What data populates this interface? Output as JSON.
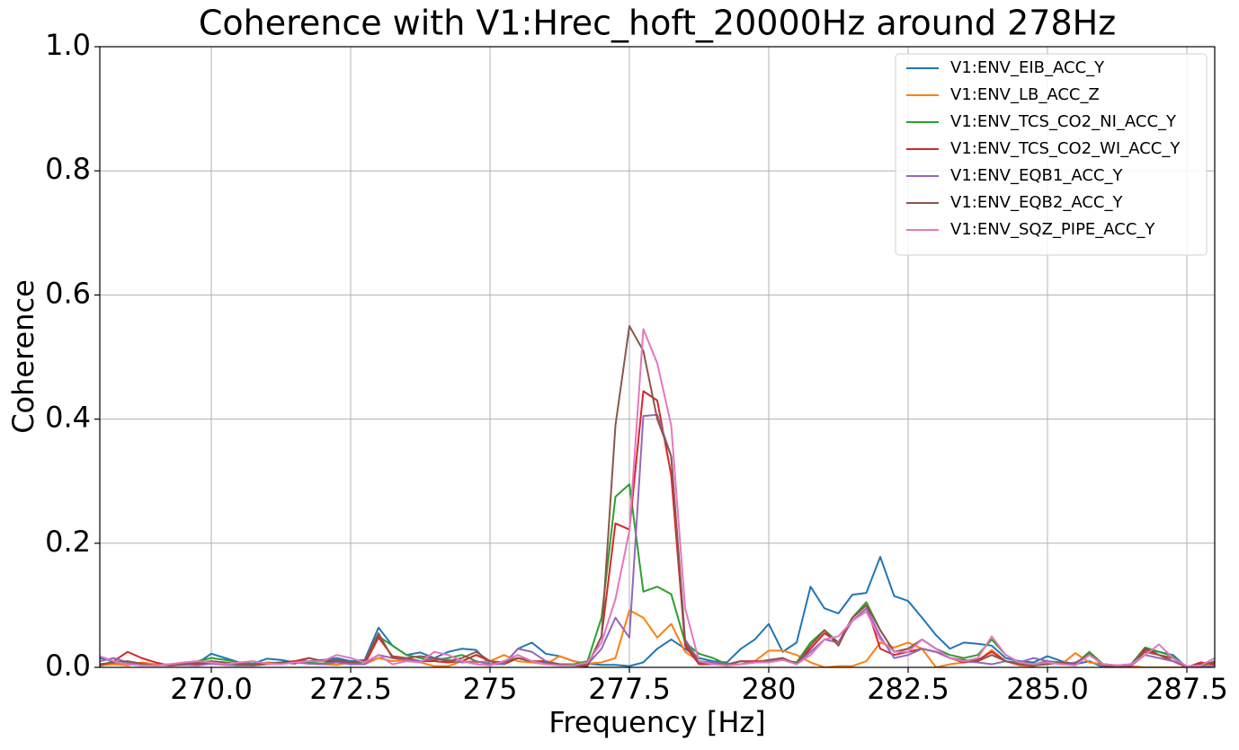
{
  "chart_data": {
    "type": "line",
    "title": "Coherence with V1:Hrec_hoft_20000Hz around 278Hz",
    "xlabel": "Frequency [Hz]",
    "ylabel": "Coherence",
    "xlim": [
      268,
      288
    ],
    "ylim": [
      0,
      1
    ],
    "xticks": [
      {
        "value": 270,
        "label": "270.0"
      },
      272.5,
      275,
      277.5,
      280,
      282.5,
      {
        "value": 285,
        "label": "285.0"
      },
      287.5
    ],
    "yticks": [
      {
        "value": 0,
        "label": "0.0"
      },
      0.2,
      0.4,
      0.6,
      0.8,
      {
        "value": 1,
        "label": "1.0"
      }
    ],
    "grid": true,
    "legend": "upper right",
    "x": [
      268,
      268.25,
      268.5,
      268.75,
      269,
      269.25,
      269.5,
      269.75,
      270,
      270.25,
      270.5,
      270.75,
      271,
      271.25,
      271.5,
      271.75,
      272,
      272.25,
      272.5,
      272.75,
      273,
      273.25,
      273.5,
      273.75,
      274,
      274.25,
      274.5,
      274.75,
      275,
      275.25,
      275.5,
      275.75,
      276,
      276.25,
      276.5,
      276.75,
      277,
      277.25,
      277.5,
      277.75,
      278,
      278.25,
      278.5,
      278.75,
      279,
      279.25,
      279.5,
      279.75,
      280,
      280.25,
      280.5,
      280.75,
      281,
      281.25,
      281.5,
      281.75,
      282,
      282.25,
      282.5,
      282.75,
      283,
      283.25,
      283.5,
      283.75,
      284,
      284.25,
      284.5,
      284.75,
      285,
      285.25,
      285.5,
      285.75,
      286,
      286.25,
      286.5,
      286.75,
      287,
      287.25,
      287.5,
      287.75,
      288
    ],
    "series": [
      {
        "name": "V1:ENV_EIB_ACC_Y",
        "color": "#1f77b4",
        "values": [
          0.015,
          0.01,
          0.008,
          0.006,
          0.004,
          0.003,
          0.005,
          0.007,
          0.022,
          0.015,
          0.008,
          0.006,
          0.014,
          0.012,
          0.008,
          0.01,
          0.012,
          0.015,
          0.01,
          0.012,
          0.064,
          0.035,
          0.02,
          0.024,
          0.015,
          0.025,
          0.03,
          0.028,
          0.005,
          0.005,
          0.03,
          0.04,
          0.022,
          0.018,
          0.01,
          0.006,
          0.004,
          0.004,
          0.002,
          0.008,
          0.03,
          0.045,
          0.03,
          0.015,
          0.01,
          0.008,
          0.03,
          0.045,
          0.07,
          0.025,
          0.04,
          0.13,
          0.095,
          0.087,
          0.117,
          0.12,
          0.178,
          0.115,
          0.107,
          0.08,
          0.052,
          0.03,
          0.04,
          0.038,
          0.035,
          0.015,
          0.01,
          0.008,
          0.018,
          0.01,
          0.005,
          0.01,
          0.0,
          0.0,
          0.005,
          0.028,
          0.025,
          0.02,
          0.0,
          0.0,
          0.005
        ]
      },
      {
        "name": "V1:ENV_LB_ACC_Z",
        "color": "#ff7f0e",
        "values": [
          0.003,
          0.005,
          0.003,
          0.008,
          0.005,
          0.003,
          0.004,
          0.005,
          0.006,
          0.004,
          0.003,
          0.005,
          0.008,
          0.007,
          0.01,
          0.006,
          0.005,
          0.004,
          0.008,
          0.005,
          0.015,
          0.01,
          0.012,
          0.008,
          0.002,
          0.002,
          0.01,
          0.008,
          0.01,
          0.02,
          0.01,
          0.008,
          0.005,
          0.018,
          0.01,
          0.006,
          0.008,
          0.015,
          0.092,
          0.08,
          0.048,
          0.07,
          0.025,
          0.01,
          0.005,
          0.003,
          0.005,
          0.01,
          0.027,
          0.027,
          0.02,
          0.008,
          0.0,
          0.002,
          0.002,
          0.01,
          0.04,
          0.032,
          0.04,
          0.03,
          0.0,
          0.005,
          0.008,
          0.01,
          0.028,
          0.01,
          0.003,
          0.002,
          0.008,
          0.005,
          0.023,
          0.008,
          0.005,
          0.003,
          0.002,
          0.0,
          0.0,
          0.0,
          0.0,
          0.002,
          0.005
        ]
      },
      {
        "name": "V1:ENV_TCS_CO2_NI_ACC_Y",
        "color": "#2ca02c",
        "values": [
          0.005,
          0.008,
          0.006,
          0.004,
          0.003,
          0.005,
          0.006,
          0.01,
          0.015,
          0.012,
          0.008,
          0.006,
          0.005,
          0.008,
          0.01,
          0.008,
          0.006,
          0.01,
          0.005,
          0.01,
          0.05,
          0.035,
          0.02,
          0.015,
          0.012,
          0.015,
          0.02,
          0.01,
          0.005,
          0.01,
          0.015,
          0.01,
          0.008,
          0.005,
          0.005,
          0.01,
          0.08,
          0.275,
          0.295,
          0.122,
          0.13,
          0.118,
          0.04,
          0.022,
          0.015,
          0.005,
          0.005,
          0.008,
          0.01,
          0.012,
          0.008,
          0.04,
          0.06,
          0.04,
          0.08,
          0.105,
          0.06,
          0.025,
          0.03,
          0.045,
          0.03,
          0.02,
          0.015,
          0.02,
          0.045,
          0.02,
          0.008,
          0.005,
          0.01,
          0.008,
          0.005,
          0.025,
          0.005,
          0.003,
          0.005,
          0.032,
          0.025,
          0.018,
          0.0,
          0.002,
          0.01
        ]
      },
      {
        "name": "V1:ENV_TCS_CO2_WI_ACC_Y",
        "color": "#d62728",
        "values": [
          0.003,
          0.01,
          0.025,
          0.015,
          0.008,
          0.003,
          0.004,
          0.005,
          0.008,
          0.006,
          0.005,
          0.003,
          0.005,
          0.008,
          0.01,
          0.015,
          0.01,
          0.01,
          0.005,
          0.005,
          0.048,
          0.018,
          0.015,
          0.01,
          0.01,
          0.008,
          0.01,
          0.02,
          0.01,
          0.005,
          0.015,
          0.01,
          0.01,
          0.005,
          0.003,
          0.002,
          0.05,
          0.232,
          0.222,
          0.445,
          0.43,
          0.31,
          0.035,
          0.005,
          0.005,
          0.005,
          0.01,
          0.01,
          0.01,
          0.015,
          0.005,
          0.03,
          0.055,
          0.04,
          0.08,
          0.1,
          0.03,
          0.02,
          0.025,
          0.03,
          0.025,
          0.015,
          0.008,
          0.012,
          0.025,
          0.01,
          0.005,
          0.003,
          0.008,
          0.005,
          0.005,
          0.02,
          0.005,
          0.003,
          0.002,
          0.03,
          0.02,
          0.01,
          0.0,
          0.008,
          0.005
        ]
      },
      {
        "name": "V1:ENV_EQB1_ACC_Y",
        "color": "#9467bd",
        "values": [
          0.01,
          0.015,
          0.008,
          0.005,
          0.003,
          0.005,
          0.004,
          0.003,
          0.006,
          0.004,
          0.003,
          0.003,
          0.005,
          0.006,
          0.008,
          0.006,
          0.005,
          0.008,
          0.005,
          0.005,
          0.02,
          0.015,
          0.012,
          0.01,
          0.015,
          0.012,
          0.008,
          0.01,
          0.005,
          0.005,
          0.03,
          0.025,
          0.01,
          0.005,
          0.003,
          0.005,
          0.03,
          0.08,
          0.048,
          0.405,
          0.407,
          0.34,
          0.045,
          0.01,
          0.008,
          0.005,
          0.005,
          0.008,
          0.01,
          0.015,
          0.005,
          0.025,
          0.045,
          0.04,
          0.075,
          0.095,
          0.05,
          0.015,
          0.02,
          0.03,
          0.025,
          0.015,
          0.01,
          0.008,
          0.005,
          0.01,
          0.008,
          0.015,
          0.01,
          0.005,
          0.008,
          0.02,
          0.005,
          0.003,
          0.003,
          0.02,
          0.015,
          0.01,
          0.0,
          0.0,
          0.003
        ]
      },
      {
        "name": "V1:ENV_EQB2_ACC_Y",
        "color": "#8c564b",
        "values": [
          0.005,
          0.008,
          0.01,
          0.006,
          0.003,
          0.004,
          0.005,
          0.008,
          0.01,
          0.008,
          0.005,
          0.004,
          0.006,
          0.008,
          0.006,
          0.015,
          0.01,
          0.012,
          0.008,
          0.01,
          0.055,
          0.015,
          0.015,
          0.018,
          0.015,
          0.01,
          0.015,
          0.025,
          0.01,
          0.008,
          0.015,
          0.01,
          0.008,
          0.005,
          0.003,
          0.004,
          0.05,
          0.39,
          0.55,
          0.51,
          0.4,
          0.34,
          0.04,
          0.008,
          0.005,
          0.005,
          0.01,
          0.008,
          0.012,
          0.015,
          0.005,
          0.035,
          0.06,
          0.035,
          0.08,
          0.1,
          0.06,
          0.025,
          0.03,
          0.045,
          0.03,
          0.015,
          0.012,
          0.01,
          0.02,
          0.01,
          0.005,
          0.003,
          0.005,
          0.008,
          0.005,
          0.022,
          0.003,
          0.002,
          0.005,
          0.025,
          0.02,
          0.015,
          0.0,
          0.005,
          0.008
        ]
      },
      {
        "name": "V1:ENV_SQZ_PIPE_ACC_Y",
        "color": "#e377c2",
        "values": [
          0.018,
          0.01,
          0.005,
          0.003,
          0.003,
          0.005,
          0.008,
          0.01,
          0.008,
          0.005,
          0.008,
          0.01,
          0.006,
          0.005,
          0.008,
          0.01,
          0.01,
          0.02,
          0.015,
          0.008,
          0.02,
          0.005,
          0.01,
          0.008,
          0.025,
          0.02,
          0.01,
          0.005,
          0.003,
          0.01,
          0.02,
          0.01,
          0.005,
          0.003,
          0.003,
          0.008,
          0.04,
          0.11,
          0.22,
          0.545,
          0.49,
          0.39,
          0.095,
          0.01,
          0.005,
          0.003,
          0.005,
          0.008,
          0.008,
          0.012,
          0.005,
          0.02,
          0.045,
          0.05,
          0.075,
          0.09,
          0.045,
          0.025,
          0.025,
          0.045,
          0.03,
          0.015,
          0.01,
          0.015,
          0.05,
          0.02,
          0.008,
          0.005,
          0.008,
          0.005,
          0.003,
          0.02,
          0.005,
          0.003,
          0.005,
          0.02,
          0.037,
          0.015,
          0.002,
          0.003,
          0.015
        ]
      }
    ]
  }
}
